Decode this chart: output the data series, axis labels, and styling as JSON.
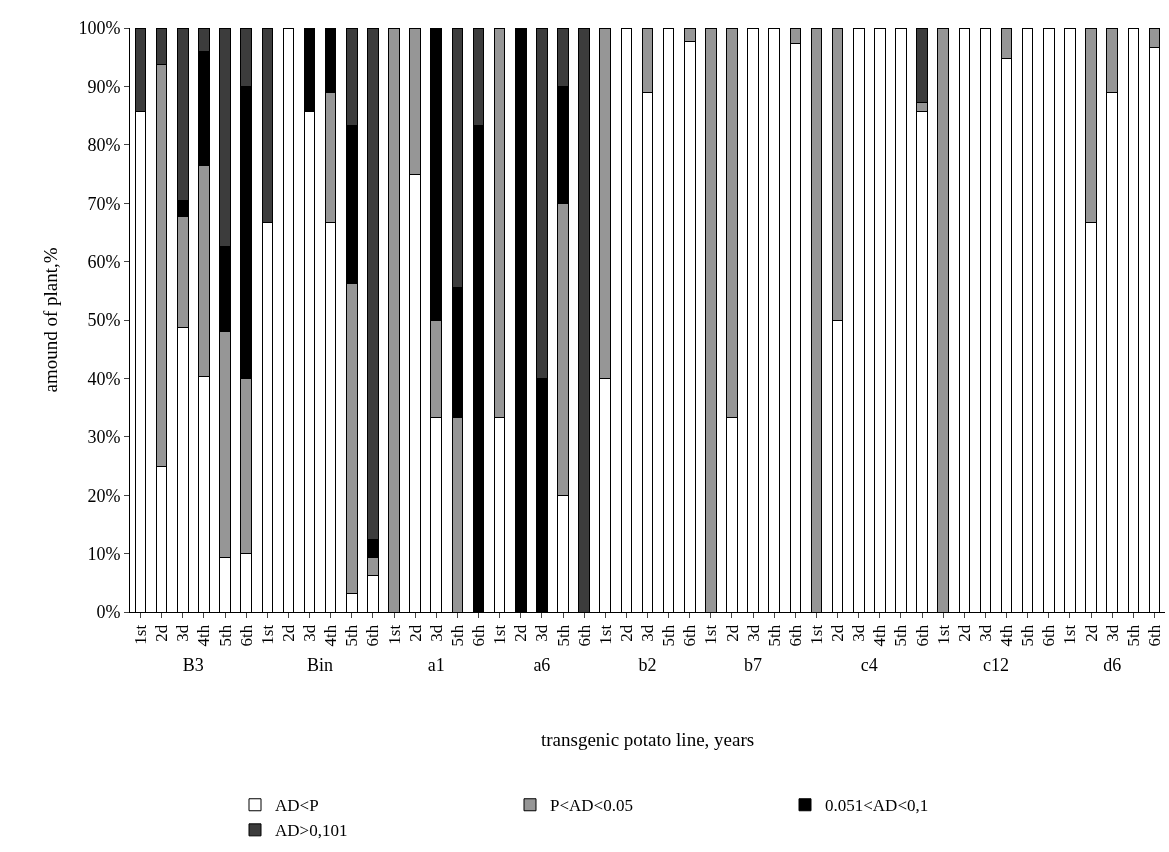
{
  "chart_data": [
    {
      "type": "bar",
      "stacked": true,
      "xlabel": "B3",
      "ylabel": "amound of plant,%",
      "annotations": [
        "transgenic potato line, years"
      ],
      "legend": "bottom",
      "categories": [
        "1st",
        "2d",
        "3d",
        "4th",
        "5th",
        "6th"
      ],
      "series": [
        {
          "name": "AD<P",
          "color": "#ffffff",
          "values": [
            85.7,
            25,
            48.8,
            40.4,
            9.3,
            10
          ]
        },
        {
          "name": "P<AD<0.05",
          "color": "#969696",
          "values": [
            0,
            68.8,
            19,
            36,
            38.8,
            30
          ]
        },
        {
          "name": "0.051<AD<0,1",
          "color": "#000000",
          "values": [
            0,
            0,
            2.7,
            19.5,
            14.5,
            50
          ]
        },
        {
          "name": "AD>0,101",
          "color": "#3c3c3c",
          "values": [
            14.3,
            6.2,
            29.5,
            4.1,
            37.4,
            10
          ]
        }
      ],
      "ylim": [
        0,
        100
      ],
      "yticks": [
        {
          "value": 0,
          "label": "0%"
        },
        {
          "value": 10,
          "label": "10%"
        },
        {
          "value": 20,
          "label": "20%"
        },
        {
          "value": 30,
          "label": "30%"
        },
        {
          "value": 40,
          "label": "40%"
        },
        {
          "value": 50,
          "label": "50%"
        },
        {
          "value": 60,
          "label": "60%"
        },
        {
          "value": 70,
          "label": "70%"
        },
        {
          "value": 80,
          "label": "80%"
        },
        {
          "value": 90,
          "label": "90%"
        },
        {
          "value": 100,
          "label": "100%"
        }
      ]
    },
    {
      "type": "bar",
      "stacked": true,
      "xlabel": "Bin",
      "tick_labels": "x",
      "ylim": [
        0,
        100
      ],
      "categories": [
        "1st",
        "2d",
        "3d",
        "4th",
        "5th",
        "6th"
      ],
      "series": [
        {
          "color": "#ffffff",
          "values": [
            66.7,
            100,
            85.7,
            66.7,
            3.1,
            6.3
          ]
        },
        {
          "color": "#969696",
          "values": [
            0,
            0,
            0,
            22.2,
            53.2,
            3.1
          ]
        },
        {
          "color": "#000000",
          "values": [
            0,
            0,
            14.3,
            11.1,
            27,
            3.1
          ]
        },
        {
          "color": "#3c3c3c",
          "values": [
            33.3,
            0,
            0,
            0,
            16.7,
            87.5
          ]
        }
      ]
    },
    {
      "type": "bar",
      "stacked": true,
      "xlabel": "a1",
      "tick_labels": "x",
      "ylim": [
        0,
        100
      ],
      "categories": [
        "1st",
        "2d",
        "3d",
        "5th",
        "6th"
      ],
      "series": [
        {
          "color": "#ffffff",
          "values": [
            0,
            75,
            33.3,
            0,
            0
          ]
        },
        {
          "color": "#969696",
          "values": [
            100,
            25,
            16.7,
            33.3,
            0
          ]
        },
        {
          "color": "#000000",
          "values": [
            0,
            0,
            50,
            22.2,
            83.3
          ]
        },
        {
          "color": "#3c3c3c",
          "values": [
            0,
            0,
            0,
            44.5,
            16.7
          ]
        }
      ]
    },
    {
      "type": "bar",
      "stacked": true,
      "xlabel": "a6",
      "tick_labels": "x",
      "ylim": [
        0,
        100
      ],
      "categories": [
        "1st",
        "2d",
        "3d",
        "5th",
        "6th"
      ],
      "series": [
        {
          "color": "#ffffff",
          "values": [
            33.3,
            0,
            0,
            20,
            0
          ]
        },
        {
          "color": "#969696",
          "values": [
            66.7,
            0,
            0,
            50,
            0
          ]
        },
        {
          "color": "#000000",
          "values": [
            0,
            100,
            40,
            20,
            0
          ]
        },
        {
          "color": "#3c3c3c",
          "values": [
            0,
            0,
            60,
            10,
            100
          ]
        }
      ]
    },
    {
      "type": "bar",
      "stacked": true,
      "xlabel": "b2",
      "tick_labels": "x",
      "ylim": [
        0,
        100
      ],
      "categories": [
        "1st",
        "2d",
        "3d",
        "5th",
        "6th"
      ],
      "series": [
        {
          "color": "#ffffff",
          "values": [
            40,
            100,
            88.9,
            100,
            97.7
          ]
        },
        {
          "color": "#969696",
          "values": [
            60,
            0,
            11.1,
            0,
            2.3
          ]
        },
        {
          "color": "#000000",
          "values": [
            0,
            0,
            0,
            0,
            0
          ]
        },
        {
          "color": "#3c3c3c",
          "values": [
            0,
            0,
            0,
            0,
            0
          ]
        }
      ]
    },
    {
      "type": "bar",
      "stacked": true,
      "xlabel": "b7",
      "tick_labels": "x",
      "ylim": [
        0,
        100
      ],
      "categories": [
        "1st",
        "2d",
        "3d",
        "5th",
        "6th"
      ],
      "series": [
        {
          "color": "#ffffff",
          "values": [
            0,
            33.3,
            100,
            100,
            97.4
          ]
        },
        {
          "color": "#969696",
          "values": [
            100,
            66.7,
            0,
            0,
            2.6
          ]
        },
        {
          "color": "#000000",
          "values": [
            0,
            0,
            0,
            0,
            0
          ]
        },
        {
          "color": "#3c3c3c",
          "values": [
            0,
            0,
            0,
            0,
            0
          ]
        }
      ]
    },
    {
      "type": "bar",
      "stacked": true,
      "xlabel": "c4",
      "tick_labels": "x",
      "ylim": [
        0,
        100
      ],
      "categories": [
        "1st",
        "2d",
        "3d",
        "4th",
        "5th",
        "6th"
      ],
      "series": [
        {
          "color": "#ffffff",
          "values": [
            0,
            50,
            100,
            100,
            100,
            85.7
          ]
        },
        {
          "color": "#969696",
          "values": [
            100,
            50,
            0,
            0,
            0,
            1.6
          ]
        },
        {
          "color": "#000000",
          "values": [
            0,
            0,
            0,
            0,
            0,
            0
          ]
        },
        {
          "color": "#3c3c3c",
          "values": [
            0,
            0,
            0,
            0,
            0,
            12.7
          ]
        }
      ]
    },
    {
      "type": "bar",
      "stacked": true,
      "xlabel": "c12",
      "tick_labels": "x",
      "ylim": [
        0,
        100
      ],
      "categories": [
        "1st",
        "2d",
        "3d",
        "4th",
        "5th",
        "6th"
      ],
      "series": [
        {
          "color": "#ffffff",
          "values": [
            0,
            100,
            100,
            94.7,
            100,
            100
          ]
        },
        {
          "color": "#969696",
          "values": [
            100,
            0,
            0,
            5.3,
            0,
            0
          ]
        },
        {
          "color": "#000000",
          "values": [
            0,
            0,
            0,
            0,
            0,
            0
          ]
        },
        {
          "color": "#3c3c3c",
          "values": [
            0,
            0,
            0,
            0,
            0,
            0
          ]
        }
      ]
    },
    {
      "type": "bar",
      "stacked": true,
      "xlabel": "d6",
      "tick_labels": "x",
      "ylim": [
        0,
        100
      ],
      "categories": [
        "1st",
        "2d",
        "3d",
        "5th",
        "6th"
      ],
      "series": [
        {
          "color": "#ffffff",
          "values": [
            100,
            66.7,
            88.9,
            100,
            96.6
          ]
        },
        {
          "color": "#969696",
          "values": [
            0,
            33.3,
            11.1,
            0,
            3.4
          ]
        },
        {
          "color": "#000000",
          "values": [
            0,
            0,
            0,
            0,
            0
          ]
        },
        {
          "color": "#3c3c3c",
          "values": [
            0,
            0,
            0,
            0,
            0
          ]
        }
      ]
    }
  ]
}
